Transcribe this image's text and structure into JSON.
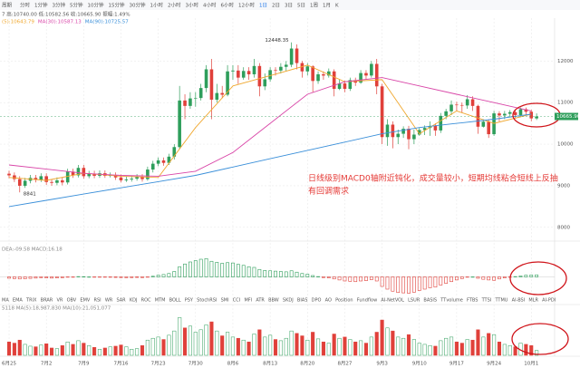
{
  "toolbar": {
    "label": "周期",
    "items": [
      "分时",
      "1分钟",
      "3分钟",
      "5分钟",
      "10分钟",
      "15分钟",
      "30分钟",
      "1小时",
      "2小时",
      "3小时",
      "4小时",
      "6小时",
      "12小时",
      "1日",
      "2日",
      "3日",
      "5日",
      "1周",
      "1月",
      "K"
    ],
    "active": "1日"
  },
  "info": {
    "ohlc": "7  高:10740.00  低:10582.56  收:10665.90  振幅:1.49%",
    "ma_legend": [
      "(5):10643.79",
      "MA(30):10587.13",
      "MA(90):10725.57"
    ]
  },
  "annotation": [
    "日线级别MACD0轴附近钝化，成交量较小，短期均线粘合短线上反抽",
    "有回调需求"
  ],
  "indicators": [
    "MA",
    "EMA",
    "TRIX",
    "BRAR",
    "VR",
    "OBV",
    "EMV",
    "RSI",
    "WR",
    "SAR",
    "KDJ",
    "ROC",
    "MTM",
    "BOLL",
    "PSY",
    "StochRSI",
    "SMI",
    "CCI",
    "MFI",
    "ATR",
    "BBW",
    "SKDJ",
    "BIAS",
    "DPO",
    "AO",
    "Position",
    "Fundflow",
    "AI-NetVOL",
    "LSUR",
    "BASIS",
    "TTvolume",
    "FTBS",
    "TTSI",
    "TTMU",
    "AI-BSI",
    "MLR",
    "AI-PDI"
  ],
  "chart_data": {
    "type": "candlestick",
    "up_color": "#2e9e5b",
    "down_color": "#e0403a",
    "open": [
      9290,
      9250,
      9160,
      9000,
      9120,
      9190,
      9140,
      9230,
      9090,
      9070,
      9130,
      9080,
      9340,
      9250,
      9430,
      9230,
      9290,
      9240,
      9300,
      9240,
      9250,
      9200,
      9130,
      9150,
      9170,
      9210,
      9160,
      9390,
      9530,
      9610,
      9550,
      9700,
      9930,
      11050,
      10920,
      11100,
      11110,
      11350,
      11800,
      11070,
      11230,
      11190,
      11750,
      11770,
      11600,
      11760,
      11680,
      11880,
      11390,
      11560,
      11780,
      11770,
      11860,
      11910,
      12300,
      11950,
      11750,
      11870,
      11520,
      11680,
      11650,
      11750,
      11330,
      11460,
      11330,
      11540,
      11480,
      11710,
      11650,
      11930,
      11390,
      10170,
      10470,
      10170,
      10250,
      10370,
      10120,
      10230,
      10340,
      10390,
      10440,
      10330,
      10680,
      10790,
      10950,
      10940,
      10930,
      11080,
      10920,
      10420,
      10540,
      10240,
      10740,
      10690,
      10730,
      10770,
      10700,
      10840,
      10780,
      10620
    ],
    "high": [
      9360,
      9320,
      9230,
      9190,
      9260,
      9260,
      9300,
      9300,
      9160,
      9200,
      9200,
      9410,
      9410,
      9500,
      9500,
      9360,
      9360,
      9370,
      9370,
      9320,
      9320,
      9270,
      9220,
      9240,
      9280,
      9280,
      9460,
      9600,
      9680,
      9680,
      9770,
      10000,
      11400,
      11200,
      11250,
      11250,
      11450,
      11900,
      12050,
      11450,
      11400,
      11900,
      11900,
      11900,
      11850,
      11850,
      12050,
      11950,
      11700,
      11850,
      11850,
      11950,
      12000,
      12448.35,
      12400,
      12000,
      11950,
      11900,
      11750,
      11750,
      11820,
      11800,
      11550,
      11530,
      11600,
      11600,
      11780,
      11780,
      12000,
      12050,
      11450,
      10600,
      10550,
      10350,
      10430,
      10440,
      10350,
      10400,
      10450,
      10550,
      10500,
      10750,
      10850,
      11050,
      11020,
      11000,
      11180,
      11150,
      10950,
      10600,
      10600,
      10800,
      10790,
      10800,
      10820,
      10820,
      10880,
      10880,
      10830,
      10740
    ],
    "low": [
      9180,
      9090,
      8841,
      8950,
      9060,
      9080,
      9090,
      9020,
      9000,
      9010,
      9010,
      9030,
      9190,
      9200,
      9170,
      9180,
      9180,
      9190,
      9190,
      9200,
      9140,
      9080,
      9090,
      9100,
      9120,
      9100,
      9120,
      9320,
      9470,
      9480,
      9500,
      9630,
      9880,
      10600,
      10850,
      10900,
      11050,
      11250,
      10600,
      11000,
      11100,
      11150,
      11550,
      11450,
      11550,
      11550,
      11600,
      11150,
      11300,
      11500,
      11650,
      11700,
      11750,
      11850,
      11800,
      11600,
      11650,
      11250,
      11450,
      11550,
      11600,
      11150,
      11300,
      11250,
      11280,
      11400,
      11450,
      11550,
      11600,
      11200,
      10000,
      9960,
      9900,
      10000,
      10150,
      9880,
      10000,
      10200,
      10220,
      10200,
      10200,
      10270,
      10600,
      10700,
      10800,
      10750,
      10850,
      10800,
      10250,
      10400,
      10150,
      10200,
      10550,
      10600,
      10650,
      10630,
      10650,
      10700,
      10550,
      10582.56
    ],
    "close": [
      9250,
      9160,
      9000,
      9120,
      9190,
      9140,
      9230,
      9090,
      9070,
      9130,
      9080,
      9340,
      9250,
      9430,
      9230,
      9290,
      9240,
      9300,
      9240,
      9250,
      9200,
      9130,
      9150,
      9170,
      9210,
      9160,
      9390,
      9530,
      9610,
      9550,
      9700,
      9930,
      11050,
      10920,
      11100,
      11110,
      11350,
      11800,
      11070,
      11230,
      11190,
      11750,
      11770,
      11600,
      11760,
      11680,
      11880,
      11390,
      11560,
      11780,
      11770,
      11860,
      11910,
      12300,
      11950,
      11750,
      11870,
      11520,
      11680,
      11650,
      11750,
      11330,
      11460,
      11330,
      11540,
      11480,
      11710,
      11650,
      11930,
      11390,
      10170,
      10470,
      10170,
      10250,
      10370,
      10120,
      10230,
      10340,
      10390,
      10440,
      10330,
      10680,
      10790,
      10950,
      10940,
      10930,
      11080,
      10920,
      10420,
      10540,
      10240,
      10740,
      10690,
      10730,
      10770,
      10700,
      10840,
      10780,
      10620,
      10665.9
    ],
    "high_label": "12448.35",
    "high_index": 53,
    "low_label": "8841",
    "low_index": 2,
    "last_label": "10665.90",
    "ylim": [
      7800,
      12900
    ],
    "yticks": [
      8000,
      9000,
      10000,
      11000,
      12000
    ],
    "grid": true,
    "xticks": [
      {
        "value": 0,
        "label": "6月25"
      },
      {
        "value": 7,
        "label": "7月2"
      },
      {
        "value": 14,
        "label": "7月9"
      },
      {
        "value": 21,
        "label": "7月16"
      },
      {
        "value": 28,
        "label": "7月23"
      },
      {
        "value": 35,
        "label": "7月30"
      },
      {
        "value": 42,
        "label": "8月6"
      },
      {
        "value": 49,
        "label": "8月13"
      },
      {
        "value": 56,
        "label": "8月20"
      },
      {
        "value": 63,
        "label": "8月27"
      },
      {
        "value": 70,
        "label": "9月3"
      },
      {
        "value": 77,
        "label": "9月10"
      },
      {
        "value": 84,
        "label": "9月17"
      },
      {
        "value": 91,
        "label": "9月24"
      },
      {
        "value": 98,
        "label": "10月1"
      }
    ],
    "ma_lines": [
      {
        "color": "#f0a830",
        "values": [
          9200,
          9130,
          9300,
          9230,
          9200,
          10400,
          11400,
          11650,
          11900,
          11500,
          11550,
          10250,
          10800,
          10500,
          10720
        ]
      },
      {
        "color": "#d946a8",
        "values": [
          9500,
          9400,
          9300,
          9250,
          9230,
          9350,
          9800,
          10500,
          11200,
          11500,
          11600,
          11400,
          11200,
          11000,
          10800
        ]
      },
      {
        "color": "#3a8fd9",
        "values": [
          8500,
          8650,
          8800,
          8950,
          9100,
          9250,
          9450,
          9650,
          9850,
          10050,
          10250,
          10400,
          10500,
          10600,
          10720
        ]
      }
    ],
    "macd": {
      "header": "DEA:-09.58  MACD:16.18",
      "ylim": [
        -300,
        300
      ],
      "values": [
        -20,
        -25,
        -30,
        -28,
        -22,
        -18,
        -12,
        -15,
        -18,
        -15,
        -12,
        -5,
        -2,
        5,
        3,
        0,
        -3,
        -2,
        -4,
        -6,
        -8,
        -10,
        -12,
        -10,
        -8,
        -10,
        -2,
        10,
        25,
        35,
        50,
        80,
        150,
        190,
        220,
        240,
        260,
        270,
        230,
        215,
        200,
        210,
        205,
        185,
        170,
        150,
        140,
        110,
        95,
        90,
        85,
        80,
        75,
        90,
        70,
        50,
        40,
        20,
        5,
        -10,
        -15,
        -30,
        -45,
        -60,
        -65,
        -70,
        -60,
        -55,
        -40,
        -60,
        -140,
        -180,
        -210,
        -230,
        -235,
        -240,
        -225,
        -200,
        -180,
        -160,
        -150,
        -120,
        -95,
        -70,
        -45,
        -25,
        -5,
        0,
        -20,
        -35,
        -45,
        -50,
        -30,
        -15,
        -5,
        5,
        15,
        25,
        28,
        30
      ]
    },
    "volume": {
      "header": "5118  MA(5):18,987,830  MA(10):21,051,077",
      "ylim": [
        0,
        70
      ],
      "values": [
        22,
        20,
        25,
        18,
        15,
        14,
        17,
        19,
        12,
        11,
        16,
        22,
        18,
        24,
        20,
        16,
        13,
        10,
        12,
        14,
        15,
        17,
        14,
        10,
        11,
        16,
        25,
        28,
        30,
        26,
        33,
        40,
        62,
        45,
        48,
        38,
        42,
        50,
        55,
        40,
        32,
        38,
        30,
        28,
        25,
        22,
        35,
        42,
        30,
        33,
        26,
        24,
        28,
        40,
        36,
        32,
        25,
        38,
        27,
        22,
        20,
        35,
        28,
        30,
        26,
        22,
        24,
        20,
        30,
        38,
        58,
        45,
        40,
        30,
        28,
        34,
        26,
        20,
        18,
        16,
        15,
        24,
        28,
        30,
        22,
        20,
        26,
        25,
        42,
        30,
        36,
        34,
        22,
        18,
        16,
        14,
        20,
        18,
        16,
        8
      ]
    }
  }
}
